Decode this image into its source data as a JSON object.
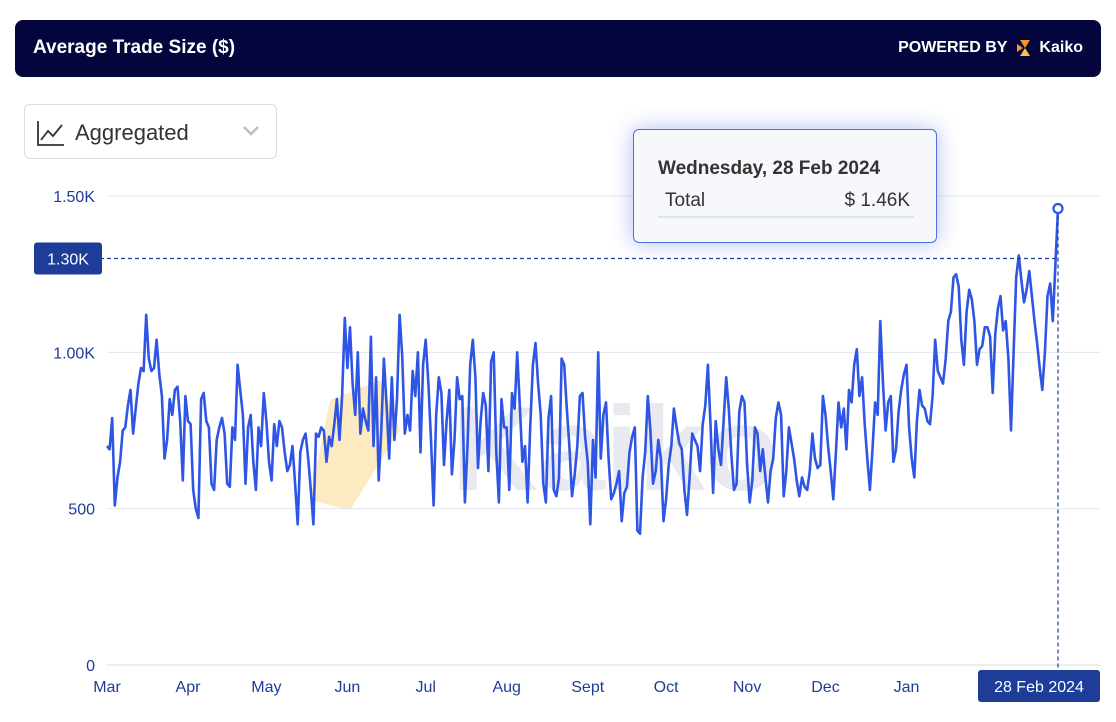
{
  "header": {
    "title": "Average Trade Size ($)",
    "powered_by": "POWERED BY",
    "brand": "Kaiko"
  },
  "toolbar": {
    "mode_label": "Aggregated"
  },
  "tooltip": {
    "date": "Wednesday, 28 Feb 2024",
    "label": "Total",
    "value": "$ 1.46K"
  },
  "watermark": "Kaiko",
  "colors": {
    "header_bg": "#05053d",
    "series": "#2f55e4",
    "accent": "#1d3d99",
    "brand_orange": "#f59a1f"
  },
  "chart_data": {
    "type": "line",
    "title": "Average Trade Size ($)",
    "xlabel": "",
    "ylabel": "",
    "ylim": [
      0,
      1500
    ],
    "y_ticks": [
      0,
      500,
      1000,
      1500
    ],
    "y_tick_labels": [
      "0",
      "500",
      "1.00K",
      "1.50K"
    ],
    "grid": "horizontal",
    "x_ticks": [
      "Mar",
      "Apr",
      "May",
      "Jun",
      "Jul",
      "Aug",
      "Sept",
      "Oct",
      "Nov",
      "Dec",
      "Jan"
    ],
    "crosshair_y_label": "1.30K",
    "crosshair_y": 1300,
    "crosshair_x_label": "28 Feb 2024",
    "x_start": "2023-03-01",
    "x_end": "2024-02-28",
    "monthly_points": [
      {
        "date": "2023-03",
        "values": [
          700,
          690,
          790,
          510,
          600,
          650,
          750,
          760,
          830,
          880,
          740,
          820,
          900,
          950,
          940,
          1120,
          980,
          940,
          950,
          1040,
          930,
          860,
          660,
          720,
          850,
          800,
          880,
          890,
          780,
          590,
          860
        ]
      },
      {
        "date": "2023-04",
        "values": [
          780,
          770,
          560,
          500,
          470,
          850,
          870,
          780,
          760,
          580,
          560,
          720,
          760,
          790,
          740,
          580,
          570,
          760,
          720,
          960,
          880,
          800,
          580,
          760,
          800,
          650,
          560,
          760,
          700,
          870
        ]
      },
      {
        "date": "2023-05",
        "values": [
          780,
          650,
          590,
          770,
          700,
          780,
          760,
          680,
          620,
          640,
          700,
          580,
          450,
          680,
          720,
          740,
          660,
          560,
          450,
          740,
          730,
          760,
          750,
          650,
          730,
          700,
          770,
          850,
          720,
          860,
          1110
        ]
      },
      {
        "date": "2023-06",
        "values": [
          950,
          1080,
          900,
          800,
          1000,
          740,
          820,
          780,
          750,
          1050,
          700,
          920,
          590,
          750,
          980,
          830,
          660,
          920,
          720,
          850,
          1120,
          990,
          740,
          800,
          750,
          940,
          860,
          1000,
          680,
          960
        ]
      },
      {
        "date": "2023-07",
        "values": [
          1040,
          900,
          720,
          510,
          800,
          920,
          870,
          640,
          780,
          880,
          610,
          720,
          920,
          850,
          860,
          520,
          700,
          960,
          1040,
          920,
          630,
          780,
          870,
          830,
          620,
          970,
          1000,
          680,
          520,
          850,
          760
        ]
      },
      {
        "date": "2023-08",
        "values": [
          760,
          560,
          870,
          820,
          1000,
          830,
          650,
          700,
          520,
          760,
          960,
          1030,
          900,
          800,
          580,
          520,
          790,
          860,
          560,
          540,
          600,
          980,
          960,
          820,
          700,
          540,
          610,
          700,
          860,
          870,
          730
        ]
      },
      {
        "date": "2023-09",
        "values": [
          650,
          450,
          720,
          600,
          1000,
          660,
          800,
          840,
          660,
          530,
          550,
          580,
          620,
          460,
          550,
          570,
          680,
          730,
          760,
          430,
          420,
          600,
          680,
          860,
          750,
          580,
          620,
          720,
          660,
          460
        ]
      },
      {
        "date": "2023-10",
        "values": [
          530,
          640,
          700,
          820,
          760,
          710,
          690,
          560,
          480,
          600,
          740,
          720,
          700,
          620,
          770,
          830,
          960,
          770,
          550,
          780,
          690,
          640,
          780,
          920,
          820,
          670,
          560,
          580,
          810,
          860,
          840
        ]
      },
      {
        "date": "2023-11",
        "values": [
          640,
          520,
          590,
          760,
          740,
          620,
          690,
          600,
          520,
          620,
          660,
          790,
          840,
          800,
          540,
          620,
          760,
          710,
          660,
          590,
          540,
          600,
          570,
          560,
          620,
          740,
          660,
          630,
          640,
          860
        ]
      },
      {
        "date": "2023-12",
        "values": [
          800,
          700,
          620,
          530,
          680,
          840,
          760,
          820,
          690,
          880,
          840,
          960,
          1010,
          860,
          920,
          770,
          660,
          560,
          690,
          840,
          800,
          1100,
          900,
          750,
          840,
          860,
          650,
          690,
          810,
          880,
          930
        ]
      },
      {
        "date": "2024-01",
        "values": [
          960,
          760,
          660,
          600,
          780,
          880,
          830,
          820,
          780,
          770,
          860,
          1040,
          940,
          920,
          900,
          980,
          1100,
          1130,
          1240,
          1250,
          1210,
          1040,
          960,
          1130,
          1200,
          1170,
          1100,
          960,
          1010,
          1020,
          1080
        ]
      },
      {
        "date": "2024-02",
        "values": [
          1080,
          1050,
          870,
          1060,
          1140,
          1180,
          1070,
          1100,
          980,
          750,
          1000,
          1240,
          1310,
          1230,
          1160,
          1200,
          1260,
          1180,
          1100,
          1030,
          950,
          880,
          1000,
          1180,
          1220,
          1100,
          1280,
          1460
        ]
      }
    ]
  }
}
